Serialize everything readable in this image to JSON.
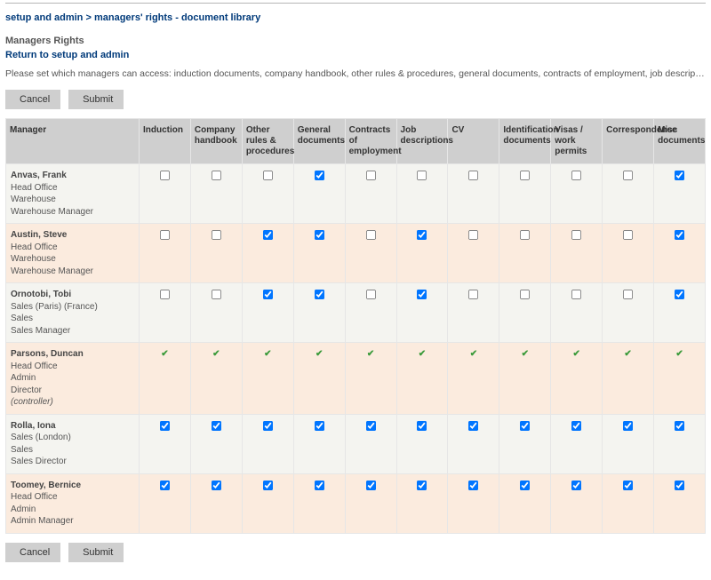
{
  "breadcrumb": {
    "part1": "setup and admin",
    "sep": ">",
    "part2": "managers' rights - document library"
  },
  "page_title": "Managers Rights",
  "return_link": "Return to setup and admin",
  "instructions": "Please set which managers can access: induction documents, company handbook, other rules & procedures, general documents, contracts of employment, job descriptions, CVs, appraisals, correspondence...",
  "buttons": {
    "cancel": "Cancel",
    "submit": "Submit"
  },
  "columns": [
    "Manager",
    "Induction",
    "Company handbook",
    "Other rules & procedures",
    "General documents",
    "Contracts of employment",
    "Job descriptions",
    "CV",
    "Identification documents",
    "Visas / work permits",
    "Correspondence",
    "Misc documents"
  ],
  "managers": [
    {
      "name": "Anvas, Frank",
      "lines": [
        "Head Office",
        "Warehouse",
        "Warehouse Manager"
      ],
      "italic": [],
      "locked": false,
      "checks": [
        false,
        false,
        false,
        true,
        false,
        false,
        false,
        false,
        false,
        false,
        true
      ]
    },
    {
      "name": "Austin, Steve",
      "lines": [
        "Head Office",
        "Warehouse",
        "Warehouse Manager"
      ],
      "italic": [],
      "locked": false,
      "checks": [
        false,
        false,
        true,
        true,
        false,
        true,
        false,
        false,
        false,
        false,
        true
      ]
    },
    {
      "name": "Ornotobi, Tobi",
      "lines": [
        "Sales (Paris) (France)",
        "Sales",
        "Sales Manager"
      ],
      "italic": [],
      "locked": false,
      "checks": [
        false,
        false,
        true,
        true,
        false,
        true,
        false,
        false,
        false,
        false,
        true
      ]
    },
    {
      "name": "Parsons, Duncan",
      "lines": [
        "Head Office",
        "Admin",
        "Director",
        "(controller)"
      ],
      "italic": [
        3
      ],
      "locked": true,
      "checks": [
        true,
        true,
        true,
        true,
        true,
        true,
        true,
        true,
        true,
        true,
        true
      ]
    },
    {
      "name": "Rolla, Iona",
      "lines": [
        "Sales (London)",
        "Sales",
        "Sales Director"
      ],
      "italic": [],
      "locked": false,
      "checks": [
        true,
        true,
        true,
        true,
        true,
        true,
        true,
        true,
        true,
        true,
        true
      ]
    },
    {
      "name": "Toomey, Bernice",
      "lines": [
        "Head Office",
        "Admin",
        "Admin Manager"
      ],
      "italic": [],
      "locked": false,
      "checks": [
        true,
        true,
        true,
        true,
        true,
        true,
        true,
        true,
        true,
        true,
        true
      ]
    }
  ]
}
